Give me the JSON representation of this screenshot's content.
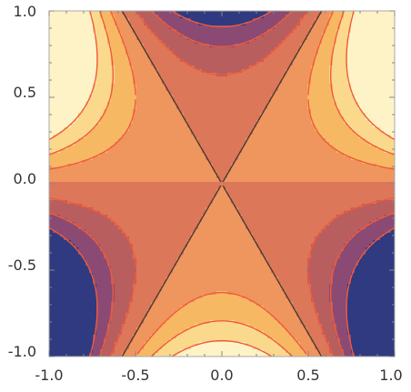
{
  "chart_data": {
    "type": "contour",
    "title": "",
    "xlabel": "",
    "ylabel": "",
    "xlim": [
      -1.0,
      1.0
    ],
    "ylim": [
      -1.0,
      1.0
    ],
    "x_ticks": [
      "-1.0",
      "-0.5",
      "0.0",
      "0.5",
      "1.0"
    ],
    "y_ticks": [
      "1.0",
      "0.5",
      "0.0",
      "-0.5",
      "-1.0"
    ],
    "grid": false,
    "legend": "none",
    "contour_levels": [
      -0.75,
      -0.5,
      -0.25,
      0.0,
      0.25,
      0.5,
      0.75
    ],
    "zero_level_style": "dashed",
    "colormap": [
      "#2f3a80",
      "#8a4a73",
      "#b85e5e",
      "#dc775a",
      "#ef955e",
      "#f7b863",
      "#fad98d",
      "#fdf3c6"
    ],
    "colors": {
      "frame": "#aaaaaa",
      "contour_line": "#f05a3c",
      "zero_line": "#4a3a32",
      "tick": "#888888",
      "label_text": "#333333"
    }
  }
}
